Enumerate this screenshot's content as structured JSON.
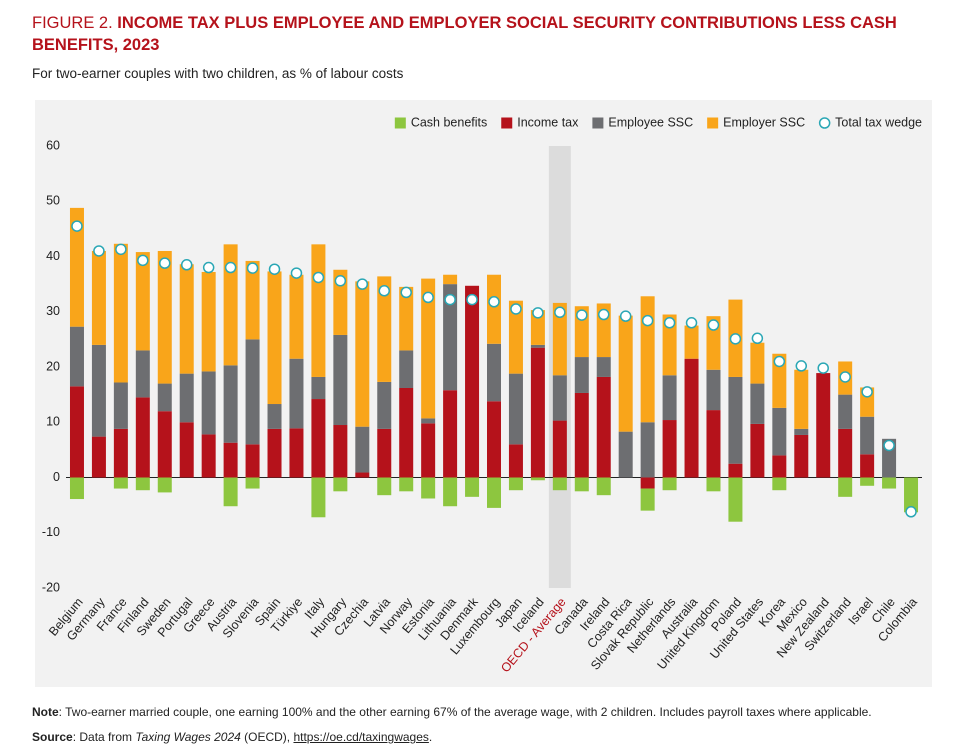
{
  "chart_data": {
    "type": "stacked-bar",
    "figure_label": "FIGURE 2.",
    "title": "INCOME TAX PLUS EMPLOYEE AND EMPLOYER SOCIAL SECURITY CONTRIBUTIONS LESS CASH BENEFITS, 2023",
    "subtitle": "For two-earner couples with two children, as % of labour costs",
    "categories": [
      "Belgium",
      "Germany",
      "France",
      "Finland",
      "Sweden",
      "Portugal",
      "Greece",
      "Austria",
      "Slovenia",
      "Spain",
      "Türkiye",
      "Italy",
      "Hungary",
      "Czechia",
      "Latvia",
      "Norway",
      "Estonia",
      "Lithuania",
      "Denmark",
      "Luxembourg",
      "Japan",
      "Iceland",
      "OECD - Average",
      "Canada",
      "Ireland",
      "Costa Rica",
      "Slovak Republic",
      "Netherlands",
      "Australia",
      "United Kingdom",
      "Poland",
      "United States",
      "Korea",
      "Mexico",
      "New Zealand",
      "Switzerland",
      "Israel",
      "Chile",
      "Colombia"
    ],
    "highlight_index": 22,
    "highlight_color": "#b5121b",
    "series": [
      {
        "name": "Cash benefits",
        "color": "#8dc63f",
        "values": [
          -3.9,
          0,
          -2,
          -2.3,
          -2.7,
          0,
          0,
          -5.2,
          -2,
          0,
          0,
          -7.2,
          -2.5,
          0,
          -3.2,
          -2.5,
          -3.8,
          -5.2,
          -3.5,
          -5.5,
          -2.3,
          -0.5,
          -2.3,
          -2.5,
          -3.2,
          0,
          -4,
          -2.3,
          0,
          -2.5,
          -8,
          0,
          -2.3,
          0,
          0,
          -3.5,
          -1.5,
          -2,
          -6.3
        ]
      },
      {
        "name": "Income tax",
        "color": "#b5121b",
        "values": [
          16.5,
          7.4,
          8.8,
          14.5,
          12,
          10,
          7.8,
          6.3,
          6,
          8.8,
          8.9,
          14.2,
          9.5,
          0.9,
          8.8,
          16.2,
          9.8,
          15.8,
          34.7,
          13.8,
          6,
          23.5,
          10.3,
          15.3,
          18.2,
          0,
          -2,
          10.4,
          21.5,
          12.2,
          2.5,
          9.7,
          4,
          7.7,
          18.9,
          8.8,
          4.2,
          0,
          0
        ]
      },
      {
        "name": "Employee SSC",
        "color": "#6d6e71",
        "values": [
          10.8,
          16.6,
          8.4,
          8.5,
          5,
          8.8,
          11.4,
          14,
          19,
          4.5,
          12.6,
          4,
          16.3,
          8.3,
          8.5,
          6.8,
          0.9,
          19.2,
          0,
          10.4,
          12.8,
          0.5,
          8.2,
          6.5,
          3.6,
          8.3,
          10,
          8.1,
          0,
          7.3,
          15.7,
          7.3,
          8.6,
          1.1,
          0,
          6.2,
          6.8,
          7,
          0
        ]
      },
      {
        "name": "Employer SSC",
        "color": "#f9a51a",
        "values": [
          21.5,
          17,
          25.1,
          17.8,
          24,
          19.8,
          18,
          21.9,
          14.2,
          24,
          15.2,
          24,
          11.8,
          26.3,
          19.1,
          11.5,
          25.3,
          1.7,
          0,
          12.5,
          13.2,
          6.3,
          13.1,
          9.2,
          9.7,
          21,
          22.8,
          11,
          6,
          9.7,
          14,
          7.4,
          9.8,
          10.7,
          0,
          6,
          5.3,
          0,
          0
        ]
      }
    ],
    "markers": {
      "name": "Total tax wedge",
      "color": "#2aa7b5",
      "values": [
        45.5,
        41,
        41.3,
        39.3,
        38.8,
        38.5,
        38,
        38,
        37.9,
        37.7,
        37,
        36.2,
        35.6,
        35,
        33.8,
        33.5,
        32.6,
        32.2,
        32.2,
        31.8,
        30.5,
        29.8,
        29.9,
        29.4,
        29.5,
        29.2,
        28.4,
        28,
        28,
        27.6,
        25.1,
        25.2,
        21,
        20.2,
        19.8,
        18.2,
        15.5,
        5.8,
        -6.2
      ]
    },
    "ylim": [
      -20,
      60
    ],
    "yticks": [
      -20,
      -10,
      0,
      10,
      20,
      30,
      40,
      50,
      60
    ],
    "grid": false,
    "legend": "top-right"
  },
  "notes": {
    "note_label": "Note",
    "note_text": ": Two-earner married couple, one earning 100% and the other earning 67% of the average wage, with 2 children. Includes payroll taxes where applicable.",
    "source_label": "Source",
    "source_pre": ": Data from ",
    "source_title": "Taxing Wages 2024",
    "source_mid": " (OECD), ",
    "source_link": "https://oe.cd/taxingwages",
    "source_end": "."
  }
}
